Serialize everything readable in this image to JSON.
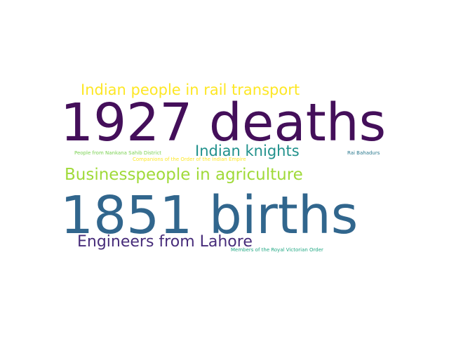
{
  "words": {
    "rail": {
      "text": "Indian people in rail transport",
      "color": "#fde725"
    },
    "deaths": {
      "text": "1927 deaths",
      "color": "#440f5a"
    },
    "nankana": {
      "text": "People from Nankana Sahib District",
      "color": "#7ad151"
    },
    "companions": {
      "text": "Companions of the Order of the Indian Empire",
      "color": "#fde725"
    },
    "knights": {
      "text": "Indian knights",
      "color": "#21918c"
    },
    "rai": {
      "text": "Rai Bahadurs",
      "color": "#2a788e"
    },
    "business": {
      "text": "Businesspeople in agriculture",
      "color": "#a0da39"
    },
    "births": {
      "text": "1851 births",
      "color": "#31668d"
    },
    "lahore": {
      "text": "Engineers from Lahore",
      "color": "#472c7a"
    },
    "rvo": {
      "text": "Members of the Royal Victorian Order",
      "color": "#22a884"
    }
  }
}
